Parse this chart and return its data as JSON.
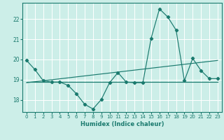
{
  "xlabel": "Humidex (Indice chaleur)",
  "bg_color": "#cceee8",
  "line_color": "#1a7a6e",
  "grid_color": "#ffffff",
  "xlim": [
    -0.5,
    23.5
  ],
  "ylim": [
    17.4,
    22.8
  ],
  "yticks": [
    18,
    19,
    20,
    21,
    22
  ],
  "xticks": [
    0,
    1,
    2,
    3,
    4,
    5,
    6,
    7,
    8,
    9,
    10,
    11,
    12,
    13,
    14,
    15,
    16,
    17,
    18,
    19,
    20,
    21,
    22,
    23
  ],
  "series1_x": [
    0,
    1,
    2,
    3,
    4,
    5,
    6,
    7,
    8,
    9,
    10,
    11,
    12,
    13,
    14,
    15,
    16,
    17,
    18,
    19,
    20,
    21,
    22,
    23
  ],
  "series1_y": [
    19.95,
    19.5,
    18.95,
    18.88,
    18.88,
    18.72,
    18.3,
    17.78,
    17.55,
    18.02,
    18.85,
    19.35,
    18.88,
    18.85,
    18.85,
    21.05,
    22.5,
    22.1,
    21.45,
    18.95,
    20.05,
    19.45,
    19.05,
    19.05
  ],
  "series2_x": [
    0,
    23
  ],
  "series2_y": [
    18.88,
    18.88
  ],
  "series3_x": [
    0,
    23
  ],
  "series3_y": [
    18.85,
    19.95
  ],
  "marker": "D",
  "marker_size": 2.2,
  "lw": 0.85
}
